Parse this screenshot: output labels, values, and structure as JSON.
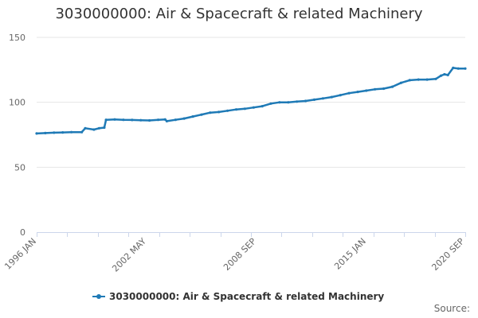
{
  "chart_data": {
    "type": "line",
    "title": "3030000000: Air & Spacecraft & related Machinery",
    "xlabel": "",
    "ylabel": "",
    "ylim": [
      0,
      150
    ],
    "yticks": [
      0,
      50,
      100,
      150
    ],
    "x_range": [
      1996.0,
      2020.7
    ],
    "x_ticks": [
      {
        "label": "1996 JAN",
        "x": 1996.0
      },
      {
        "label": "2002 MAY",
        "x": 2002.33
      },
      {
        "label": "2008 SEP",
        "x": 2008.67
      },
      {
        "label": "2015 JAN",
        "x": 2015.0
      },
      {
        "label": "2020 SEP",
        "x": 2020.67
      }
    ],
    "legend_position": "bottom",
    "series": [
      {
        "name": "3030000000: Air & Spacecraft & related Machinery",
        "color": "#1f7ab6",
        "x": [
          1996.0,
          1996.5,
          1997.0,
          1997.5,
          1998.0,
          1998.6,
          1998.8,
          1999.3,
          1999.6,
          1999.9,
          2000.0,
          2000.5,
          2001.0,
          2001.5,
          2002.0,
          2002.5,
          2003.0,
          2003.4,
          2003.5,
          2004.0,
          2004.5,
          2005.0,
          2005.5,
          2006.0,
          2006.5,
          2007.0,
          2007.5,
          2008.0,
          2008.5,
          2009.0,
          2009.5,
          2010.0,
          2010.5,
          2011.0,
          2011.5,
          2012.0,
          2012.5,
          2013.0,
          2013.5,
          2014.0,
          2014.5,
          2015.0,
          2015.5,
          2016.0,
          2016.5,
          2017.0,
          2017.5,
          2018.0,
          2018.5,
          2019.0,
          2019.3,
          2019.5,
          2019.7,
          2020.0,
          2020.3,
          2020.7
        ],
        "values": [
          76,
          76.3,
          76.6,
          76.8,
          77,
          77,
          80,
          79,
          80,
          80.5,
          86.5,
          86.8,
          86.5,
          86.4,
          86.2,
          86,
          86.5,
          86.8,
          85.5,
          86.5,
          87.5,
          89,
          90.5,
          92,
          92.5,
          93.5,
          94.5,
          95,
          96,
          97,
          99,
          100,
          100,
          100.5,
          101,
          102,
          103,
          104,
          105.5,
          107,
          108,
          109,
          110,
          110.5,
          112,
          115,
          117,
          117.5,
          117.5,
          118,
          120.5,
          121.5,
          121,
          126.5,
          126,
          126
        ]
      }
    ]
  },
  "source_label": "Source:"
}
